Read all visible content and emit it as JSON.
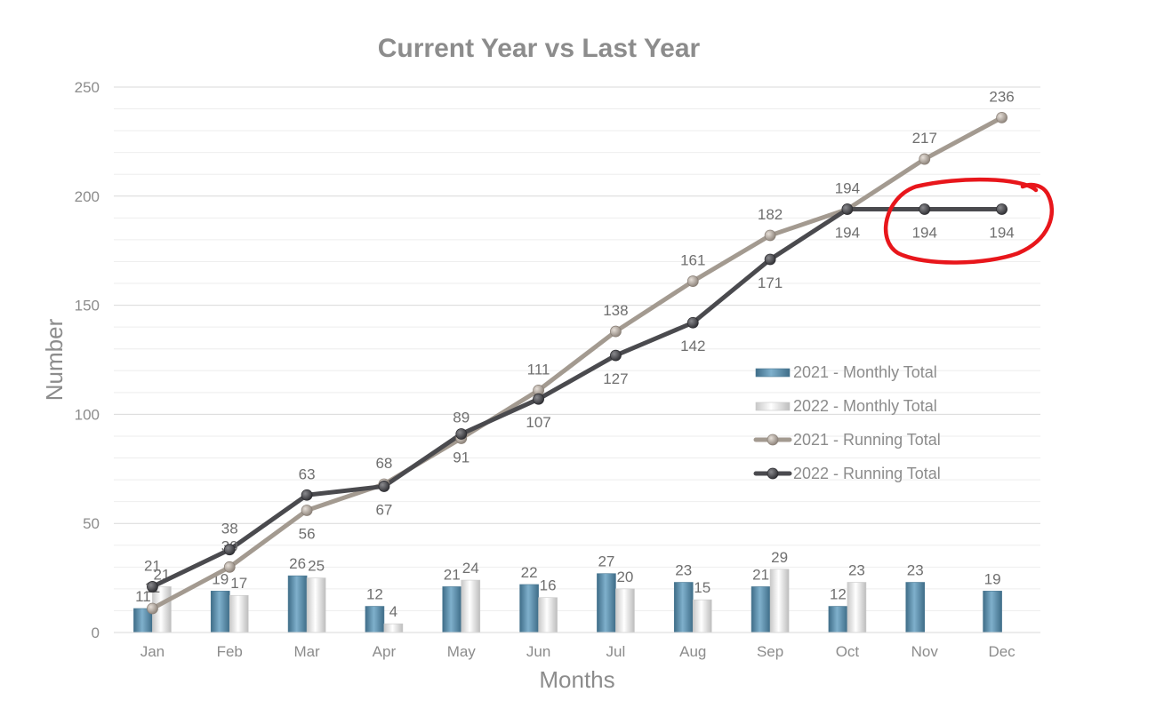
{
  "chart_data": {
    "type": "bar",
    "title": "Current Year vs Last Year",
    "xlabel": "Months",
    "ylabel": "Number",
    "ylim": [
      0,
      250
    ],
    "y_ticks": [
      0,
      50,
      100,
      150,
      200,
      250
    ],
    "grid": true,
    "legend_position": "right",
    "categories": [
      "Jan",
      "Feb",
      "Mar",
      "Apr",
      "May",
      "Jun",
      "Jul",
      "Aug",
      "Sep",
      "Oct",
      "Nov",
      "Dec"
    ],
    "series": [
      {
        "name": "2021 - Monthly Total",
        "kind": "bar",
        "color": "#5b8aa6",
        "values": [
          11,
          19,
          26,
          12,
          21,
          22,
          27,
          23,
          21,
          12,
          23,
          19
        ]
      },
      {
        "name": "2022 - Monthly Total",
        "kind": "bar",
        "color": "#f2f2f2",
        "values": [
          21,
          17,
          25,
          4,
          24,
          16,
          20,
          15,
          29,
          23,
          null,
          null
        ]
      },
      {
        "name": "2021 - Running Total",
        "kind": "line",
        "color": "#a39a90",
        "values": [
          11,
          30,
          56,
          68,
          89,
          111,
          138,
          161,
          182,
          194,
          217,
          236
        ]
      },
      {
        "name": "2022 - Running Total",
        "kind": "line",
        "color": "#4a4a4e",
        "values": [
          21,
          38,
          63,
          67,
          91,
          107,
          127,
          142,
          171,
          194,
          194,
          194
        ]
      }
    ],
    "annotations": [
      {
        "type": "hand-drawn-circle",
        "color": "#e8161b",
        "target_categories": [
          "Nov",
          "Dec"
        ],
        "target_series": "2022 - Running Total"
      }
    ]
  }
}
